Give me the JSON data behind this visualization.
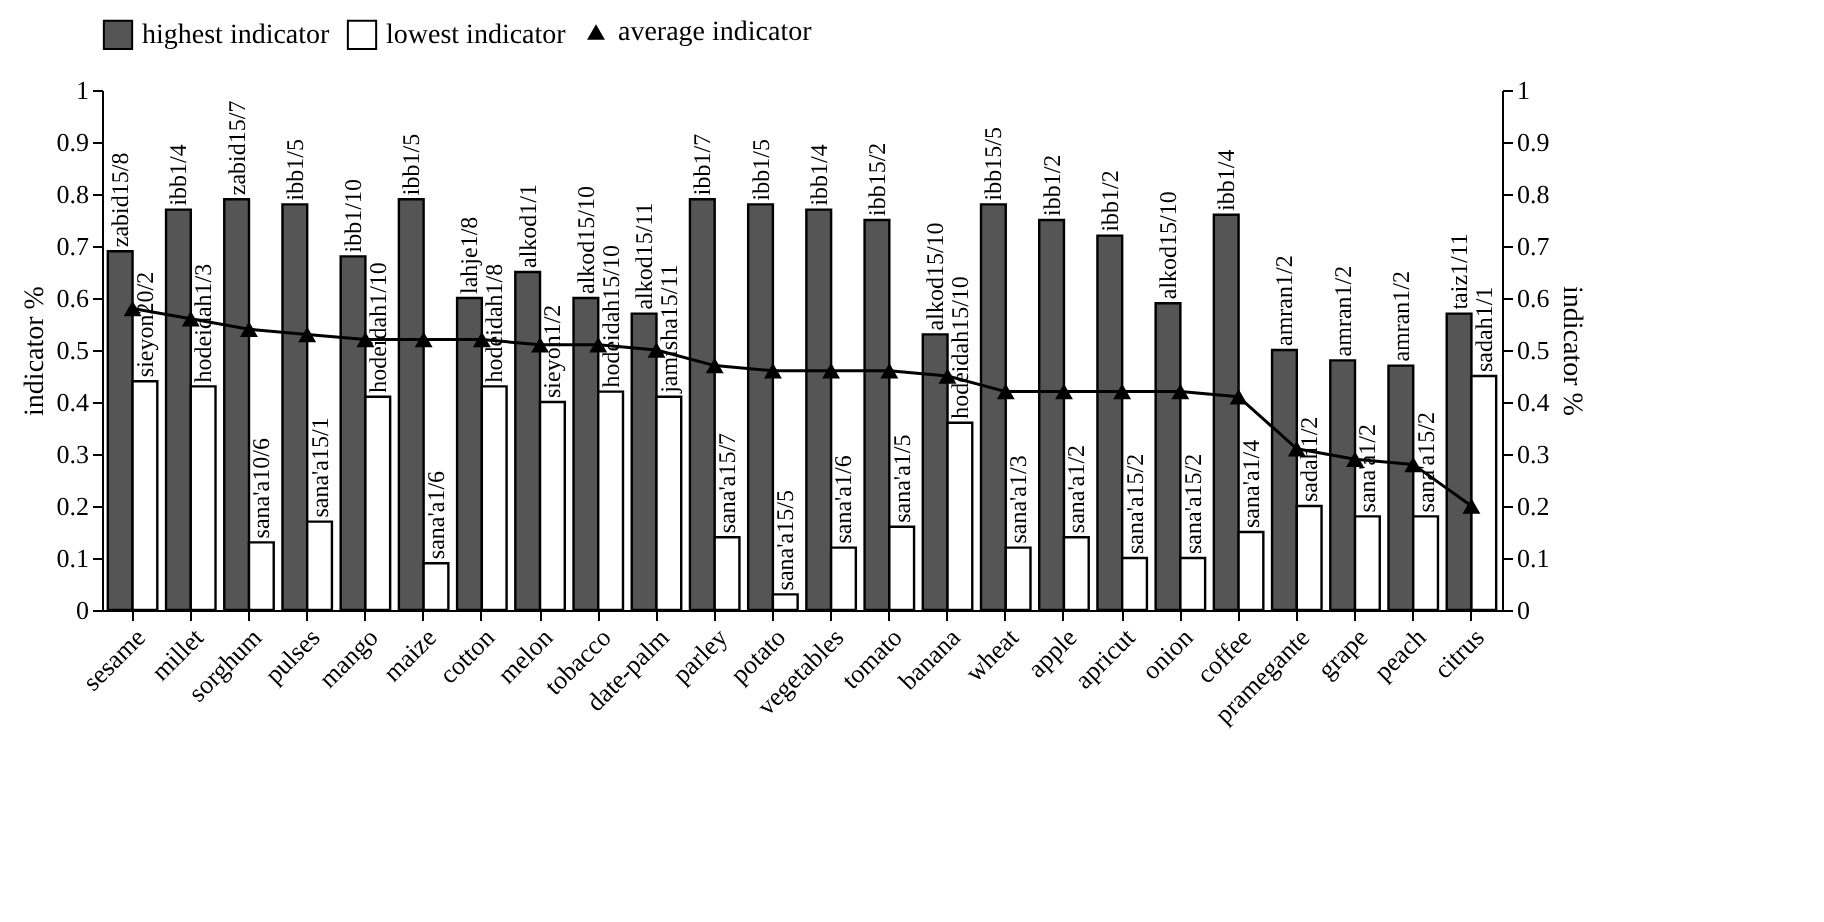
{
  "chart_data": {
    "type": "bar",
    "xlabel": null,
    "ylabel": "indicator %",
    "y2label": "indicator %",
    "categories": [
      "sesame",
      "millet",
      "sorghum",
      "pulses",
      "mango",
      "maize",
      "cotton",
      "melon",
      "tobacco",
      "date-palm",
      "parley",
      "potato",
      "vegetables",
      "tomato",
      "banana",
      "wheat",
      "apple",
      "apricut",
      "onion",
      "coffee",
      "pramegante",
      "grape",
      "peach",
      "citrus"
    ],
    "series": [
      {
        "name": "highest indicator",
        "color": "#555555",
        "values": [
          0.69,
          0.77,
          0.79,
          0.78,
          0.68,
          0.79,
          0.6,
          0.65,
          0.6,
          0.57,
          0.79,
          0.78,
          0.77,
          0.75,
          0.53,
          0.78,
          0.75,
          0.72,
          0.59,
          0.76,
          0.5,
          0.48,
          0.47,
          0.57
        ],
        "value_labels": [
          "zabid15/8",
          "ibb1/4",
          "zabid15/7",
          "ibb1/5",
          "ibb1/10",
          "ibb1/5",
          "lahje1/8",
          "alkod1/1",
          "alkod15/10",
          "alkod15/11",
          "ibb1/7",
          "ibb1/5",
          "ibb1/4",
          "ibb15/2",
          "alkod15/10",
          "ibb15/5",
          "ibb1/2",
          "ibb1/2",
          "alkod15/10",
          "ibb1/4",
          "amran1/2",
          "amran1/2",
          "amran1/2",
          "taiz1/11"
        ]
      },
      {
        "name": "lowest indicator",
        "color": "#ffffff",
        "values": [
          0.44,
          0.43,
          0.13,
          0.17,
          0.41,
          0.09,
          0.43,
          0.4,
          0.42,
          0.41,
          0.14,
          0.03,
          0.12,
          0.16,
          0.36,
          0.12,
          0.14,
          0.1,
          0.1,
          0.15,
          0.2,
          0.18,
          0.18,
          0.45
        ],
        "value_labels": [
          "sieyon20/2",
          "hodeidah1/3",
          "sana'a10/6",
          "sana'a15/1",
          "hodeidah1/10",
          "sana'a1/6",
          "hodeidah1/8",
          "sieyon1/2",
          "hodeidah15/10",
          "jamisha15/11",
          "sana'a15/7",
          "sana'a15/5",
          "sana'a1/6",
          "sana'a1/5",
          "hodeidah15/10",
          "sana'a1/3",
          "sana'a1/2",
          "sana'a15/2",
          "sana'a15/2",
          "sana'a1/4",
          "sadah1/2",
          "sana'a1/2",
          "sana'a15/2",
          "sadah1/1"
        ]
      },
      {
        "name": "average indicator",
        "type": "line",
        "color": "#000000",
        "marker": "triangle",
        "values": [
          0.58,
          0.56,
          0.54,
          0.53,
          0.52,
          0.52,
          0.52,
          0.51,
          0.51,
          0.5,
          0.47,
          0.46,
          0.46,
          0.46,
          0.45,
          0.42,
          0.42,
          0.42,
          0.42,
          0.41,
          0.31,
          0.29,
          0.28,
          0.2
        ]
      }
    ],
    "ylim": [
      0,
      1
    ],
    "yticks": [
      0,
      0.1,
      0.2,
      0.3,
      0.4,
      0.5,
      0.6,
      0.7,
      0.8,
      0.9,
      1
    ],
    "y2lim": [
      0,
      1
    ],
    "y2ticks": [
      0,
      0.1,
      0.2,
      0.3,
      0.4,
      0.5,
      0.6,
      0.7,
      0.8,
      0.9,
      1
    ],
    "legend": "top",
    "grid": false
  }
}
